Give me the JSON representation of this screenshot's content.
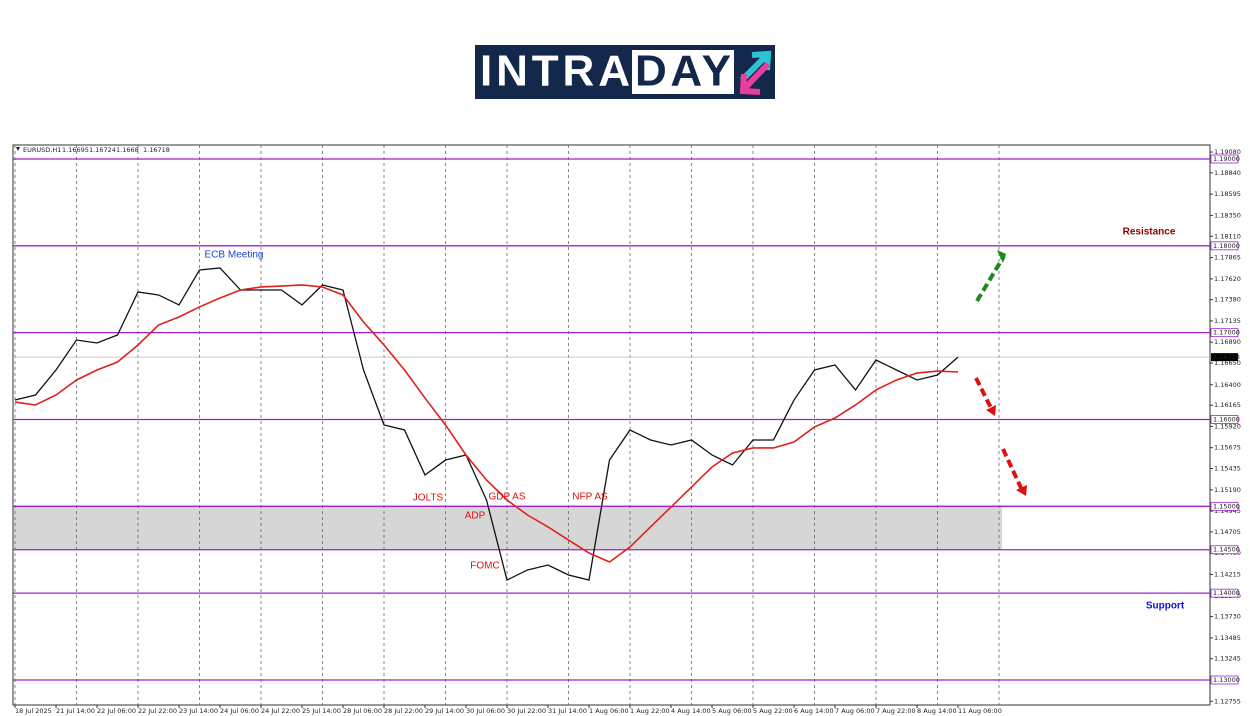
{
  "logo": [
    "INTRA",
    "DAY"
  ],
  "chart_data": {
    "type": "line",
    "symbol": "EURUSD,H1",
    "ohlc": [
      1.16695,
      1.16724,
      1.1668,
      1.16718
    ],
    "categories": [
      "18 Jul 2025",
      null,
      "21 Jul 14:00",
      null,
      "22 Jul 06:00",
      null,
      "22 Jul 22:00",
      null,
      "23 Jul 14:00",
      null,
      "24 Jul 06:00",
      null,
      "24 Jul 22:00",
      null,
      "25 Jul 14:00",
      null,
      "28 Jul 06:00",
      null,
      "28 Jul 22:00",
      null,
      "29 Jul 14:00",
      null,
      "30 Jul 06:00",
      null,
      "30 Jul 22:00",
      null,
      "31 Jul 14:00",
      null,
      "1 Aug 06:00",
      null,
      "1 Aug 22:00",
      null,
      "4 Aug 14:00",
      null,
      "5 Aug 06:00",
      null,
      "5 Aug 22:00",
      null,
      "6 Aug 14:00",
      null,
      "7 Aug 06:00",
      null,
      "7 Aug 22:00",
      null,
      "8 Aug 14:00",
      null,
      "11 Aug 06:00"
    ],
    "series": [
      {
        "color": "#111111",
        "values": [
          1.16224,
          1.16282,
          1.1657,
          1.16915,
          1.16881,
          1.16973,
          1.17468,
          1.17434,
          1.17319,
          1.17722,
          1.17745,
          1.17491,
          1.17491,
          1.17491,
          1.17319,
          1.17549,
          1.17491,
          1.1657,
          1.15937,
          1.15879,
          1.15361,
          1.15533,
          1.15591,
          1.15073,
          1.14151,
          1.14267,
          1.14324,
          1.14209,
          1.14151,
          1.15533,
          1.15879,
          1.15764,
          1.15706,
          1.15764,
          1.15591,
          1.15476,
          1.15764,
          1.15764,
          1.16224,
          1.1657,
          1.16628,
          1.1634,
          1.16685,
          1.1657,
          1.16455,
          1.16512,
          1.16718
        ]
      },
      {
        "color": "#e0201b",
        "values": [
          1.16201,
          1.16167,
          1.16282,
          1.16455,
          1.1657,
          1.16662,
          1.16858,
          1.17088,
          1.1718,
          1.17296,
          1.17399,
          1.17491,
          1.17526,
          1.17537,
          1.17549,
          1.17526,
          1.17434,
          1.17123,
          1.16858,
          1.1657,
          1.16247,
          1.15937,
          1.15591,
          1.15303,
          1.15073,
          1.149,
          1.14762,
          1.14612,
          1.14462,
          1.14359,
          1.14531,
          1.14762,
          1.14992,
          1.15222,
          1.15453,
          1.15614,
          1.15672,
          1.15672,
          1.15741,
          1.15914,
          1.16017,
          1.16167,
          1.1634,
          1.16455,
          1.16535,
          1.16558,
          1.16547
        ]
      }
    ],
    "ylim": [
      1.12712,
      1.19161
    ],
    "yticks": [
      {
        "value": 1.1908,
        "label": "1.19080"
      },
      {
        "value": 1.1884,
        "label": "1.18840"
      },
      1.18595,
      {
        "value": 1.1835,
        "label": "1.18350"
      },
      {
        "value": 1.1811,
        "label": "1.18110"
      },
      1.17865,
      {
        "value": 1.1762,
        "label": "1.17620"
      },
      {
        "value": 1.1738,
        "label": "1.17380"
      },
      1.17135,
      {
        "value": 1.1689,
        "label": "1.16890"
      },
      {
        "value": 1.1665,
        "label": "1.16650"
      },
      {
        "value": 1.164,
        "label": "1.16400"
      },
      1.16165,
      {
        "value": 1.1592,
        "label": "1.15920"
      },
      1.15675,
      1.15435,
      {
        "value": 1.1519,
        "label": "1.15190"
      },
      1.14945,
      1.14705,
      {
        "value": 1.1446,
        "label": "1.14460"
      },
      1.14215,
      {
        "value": 1.1397,
        "label": "1.13970"
      },
      {
        "value": 1.1373,
        "label": "1.13730"
      },
      1.13485,
      1.13245,
      1.12755
    ],
    "levels": [
      {
        "value": 1.19,
        "label": "1.19000"
      },
      {
        "value": 1.18,
        "label": "1.18000"
      },
      {
        "value": 1.17,
        "label": "1.17000"
      },
      {
        "value": 1.16,
        "label": "1.16000"
      },
      {
        "value": 1.15,
        "label": "1.15000"
      },
      {
        "value": 1.145,
        "label": "1.14500"
      },
      {
        "value": 1.14,
        "label": "1.14000"
      },
      {
        "value": 1.13,
        "label": "1.13000"
      }
    ],
    "level_color": "#a020d0",
    "zone": [
      1.145,
      1.15
    ],
    "current_price": {
      "value": 1.16718,
      "label": "1.16718"
    },
    "grid": true,
    "annotations": [
      "ECB Meeting",
      "JOLTS",
      "GDP AS",
      "ADP",
      "FOMC",
      "NFP AS",
      "Resistance",
      "Support"
    ]
  }
}
